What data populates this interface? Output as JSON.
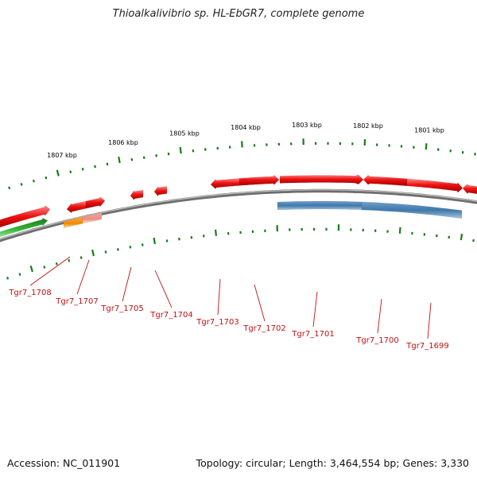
{
  "title": "Thioalkalivibrio sp. HL-EbGR7, complete genome",
  "footer": {
    "accession": "Accession: NC_011901",
    "summary": "Topology: circular; Length: 3,464,554 bp; Genes: 3,330"
  },
  "colors": {
    "backbone": "#8a8a8a",
    "tick": "#1a7a1a",
    "gene_forward": "#ee1111",
    "gene_reverse_cds": "#4a82b4",
    "gene_rna_green": "#2bb02b",
    "gene_orange": "#f59a1a",
    "gene_salmon": "#f2a39a",
    "gene_label": "#c01010",
    "kbp_label": "#000000"
  },
  "kbp_labels": [
    "1807 kbp",
    "1806 kbp",
    "1805 kbp",
    "1804 kbp",
    "1803 kbp",
    "1802 kbp",
    "1801 kbp"
  ],
  "gene_labels": [
    "Tgr7_1708",
    "Tgr7_1707",
    "Tgr7_1705",
    "Tgr7_1704",
    "Tgr7_1703",
    "Tgr7_1702",
    "Tgr7_1701",
    "Tgr7_1700",
    "Tgr7_1699"
  ]
}
